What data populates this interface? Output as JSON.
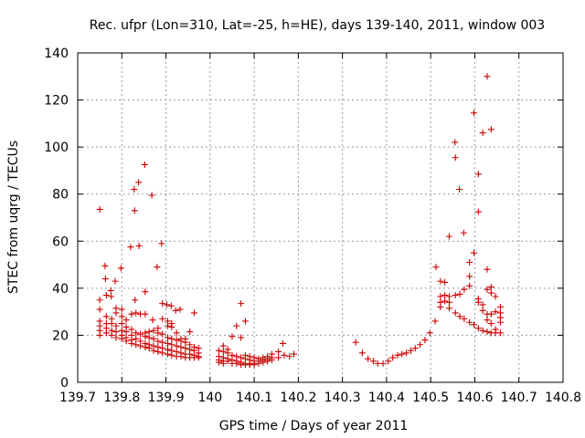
{
  "chart_data": {
    "type": "scatter",
    "title": "Rec. ufpr (Lon=310, Lat=-25, h=HE), days 139-140, 2011, window 003",
    "xlabel": "GPS time / Days of year 2011",
    "ylabel": "STEC from uqrg / TECUs",
    "xlim": [
      139.7,
      140.8
    ],
    "ylim": [
      0,
      140
    ],
    "xticks": [
      139.7,
      139.8,
      139.9,
      140.0,
      140.1,
      140.2,
      140.3,
      140.4,
      140.5,
      140.6,
      140.7,
      140.8
    ],
    "xtick_labels": [
      "139.7",
      "139.8",
      "139.9",
      "140",
      "140.1",
      "140.2",
      "140.3",
      "140.4",
      "140.5",
      "140.6",
      "140.7",
      "140.8"
    ],
    "yticks": [
      0,
      20,
      40,
      60,
      80,
      100,
      120,
      140
    ],
    "ytick_labels": [
      "0",
      "20",
      "40",
      "60",
      "80",
      "100",
      "120",
      "140"
    ],
    "grid": true,
    "marker": "+",
    "color": "#cc0000",
    "points": [
      [
        139.75,
        73.5
      ],
      [
        139.75,
        35
      ],
      [
        139.75,
        31
      ],
      [
        139.75,
        26
      ],
      [
        139.75,
        24
      ],
      [
        139.75,
        22
      ],
      [
        139.75,
        20
      ],
      [
        139.762,
        49.5
      ],
      [
        139.763,
        44
      ],
      [
        139.765,
        37
      ],
      [
        139.765,
        28
      ],
      [
        139.765,
        25
      ],
      [
        139.765,
        23
      ],
      [
        139.765,
        21
      ],
      [
        139.775,
        39
      ],
      [
        139.776,
        36.5
      ],
      [
        139.777,
        27
      ],
      [
        139.777,
        25
      ],
      [
        139.777,
        22
      ],
      [
        139.777,
        20
      ],
      [
        139.785,
        43
      ],
      [
        139.787,
        31.5
      ],
      [
        139.787,
        29.5
      ],
      [
        139.787,
        24
      ],
      [
        139.787,
        21.5
      ],
      [
        139.787,
        19
      ],
      [
        139.798,
        48.5
      ],
      [
        139.8,
        31
      ],
      [
        139.8,
        28
      ],
      [
        139.8,
        25
      ],
      [
        139.8,
        22
      ],
      [
        139.8,
        20
      ],
      [
        139.8,
        18.5
      ],
      [
        139.81,
        26.5
      ],
      [
        139.81,
        23.5
      ],
      [
        139.81,
        21.5
      ],
      [
        139.81,
        19
      ],
      [
        139.81,
        17.5
      ],
      [
        139.82,
        57.5
      ],
      [
        139.822,
        29
      ],
      [
        139.822,
        22.5
      ],
      [
        139.822,
        20
      ],
      [
        139.822,
        18
      ],
      [
        139.822,
        16.5
      ],
      [
        139.828,
        82
      ],
      [
        139.829,
        73
      ],
      [
        139.83,
        35
      ],
      [
        139.832,
        29.5
      ],
      [
        139.832,
        21
      ],
      [
        139.832,
        18.5
      ],
      [
        139.832,
        16
      ],
      [
        139.838,
        85
      ],
      [
        139.839,
        58
      ],
      [
        139.842,
        29
      ],
      [
        139.842,
        20.5
      ],
      [
        139.842,
        17.5
      ],
      [
        139.842,
        15.5
      ],
      [
        139.852,
        92.5
      ],
      [
        139.853,
        38.5
      ],
      [
        139.853,
        29
      ],
      [
        139.853,
        21
      ],
      [
        139.853,
        19.5
      ],
      [
        139.853,
        16.5
      ],
      [
        139.853,
        15
      ],
      [
        139.862,
        21.5
      ],
      [
        139.862,
        19
      ],
      [
        139.862,
        16
      ],
      [
        139.862,
        14.5
      ],
      [
        139.868,
        79.5
      ],
      [
        139.87,
        26.5
      ],
      [
        139.872,
        22
      ],
      [
        139.872,
        18.5
      ],
      [
        139.872,
        15.5
      ],
      [
        139.872,
        13.5
      ],
      [
        139.88,
        49
      ],
      [
        139.882,
        23
      ],
      [
        139.882,
        21
      ],
      [
        139.882,
        17.5
      ],
      [
        139.882,
        15
      ],
      [
        139.882,
        13
      ],
      [
        139.89,
        59
      ],
      [
        139.892,
        33.5
      ],
      [
        139.892,
        27
      ],
      [
        139.892,
        20.5
      ],
      [
        139.892,
        17
      ],
      [
        139.892,
        14.5
      ],
      [
        139.892,
        12.5
      ],
      [
        139.902,
        33
      ],
      [
        139.904,
        26
      ],
      [
        139.904,
        24
      ],
      [
        139.904,
        19
      ],
      [
        139.904,
        16.5
      ],
      [
        139.904,
        14
      ],
      [
        139.904,
        12
      ],
      [
        139.912,
        32.5
      ],
      [
        139.913,
        25
      ],
      [
        139.913,
        23.5
      ],
      [
        139.913,
        18.5
      ],
      [
        139.913,
        16
      ],
      [
        139.913,
        13.5
      ],
      [
        139.913,
        11.5
      ],
      [
        139.922,
        30.5
      ],
      [
        139.924,
        21
      ],
      [
        139.924,
        18
      ],
      [
        139.924,
        15.5
      ],
      [
        139.924,
        13
      ],
      [
        139.924,
        11
      ],
      [
        139.932,
        31
      ],
      [
        139.934,
        18.5
      ],
      [
        139.934,
        17.5
      ],
      [
        139.934,
        15
      ],
      [
        139.934,
        12.5
      ],
      [
        139.934,
        11
      ],
      [
        139.944,
        18.5
      ],
      [
        139.944,
        17
      ],
      [
        139.944,
        14.5
      ],
      [
        139.944,
        12
      ],
      [
        139.944,
        10.5
      ],
      [
        139.954,
        21.5
      ],
      [
        139.954,
        16
      ],
      [
        139.954,
        14
      ],
      [
        139.954,
        12
      ],
      [
        139.954,
        10.5
      ],
      [
        139.964,
        29.5
      ],
      [
        139.964,
        15
      ],
      [
        139.964,
        13.5
      ],
      [
        139.964,
        11.5
      ],
      [
        139.964,
        10.5
      ],
      [
        139.974,
        14.5
      ],
      [
        139.974,
        12.5
      ],
      [
        139.974,
        11
      ],
      [
        139.974,
        10.5
      ],
      [
        140.02,
        13.5
      ],
      [
        140.02,
        11
      ],
      [
        140.02,
        9.5
      ],
      [
        140.02,
        8.5
      ],
      [
        140.03,
        15.5
      ],
      [
        140.03,
        13
      ],
      [
        140.03,
        10.5
      ],
      [
        140.03,
        9
      ],
      [
        140.03,
        8
      ],
      [
        140.04,
        14
      ],
      [
        140.04,
        12.5
      ],
      [
        140.04,
        10
      ],
      [
        140.04,
        9
      ],
      [
        140.05,
        19.5
      ],
      [
        140.05,
        11.5
      ],
      [
        140.05,
        9.5
      ],
      [
        140.05,
        8
      ],
      [
        140.06,
        24
      ],
      [
        140.06,
        11
      ],
      [
        140.06,
        9
      ],
      [
        140.06,
        8
      ],
      [
        140.07,
        33.5
      ],
      [
        140.07,
        19
      ],
      [
        140.07,
        10.5
      ],
      [
        140.07,
        8.5
      ],
      [
        140.07,
        7.5
      ],
      [
        140.08,
        26
      ],
      [
        140.08,
        11.5
      ],
      [
        140.08,
        10
      ],
      [
        140.08,
        8
      ],
      [
        140.08,
        7.5
      ],
      [
        140.09,
        11
      ],
      [
        140.09,
        9.5
      ],
      [
        140.09,
        8
      ],
      [
        140.09,
        7.5
      ],
      [
        140.1,
        10.5
      ],
      [
        140.1,
        9
      ],
      [
        140.1,
        8
      ],
      [
        140.1,
        7.5
      ],
      [
        140.11,
        10
      ],
      [
        140.11,
        9
      ],
      [
        140.11,
        8
      ],
      [
        140.12,
        10.5
      ],
      [
        140.12,
        9.5
      ],
      [
        140.12,
        8.5
      ],
      [
        140.13,
        11
      ],
      [
        140.13,
        10
      ],
      [
        140.13,
        9
      ],
      [
        140.14,
        12
      ],
      [
        140.14,
        10.5
      ],
      [
        140.14,
        9.5
      ],
      [
        140.155,
        13
      ],
      [
        140.155,
        10.5
      ],
      [
        140.165,
        16.5
      ],
      [
        140.168,
        11.5
      ],
      [
        140.18,
        11
      ],
      [
        140.19,
        12
      ],
      [
        140.33,
        17
      ],
      [
        140.345,
        12.5
      ],
      [
        140.358,
        10
      ],
      [
        140.37,
        9
      ],
      [
        140.38,
        8
      ],
      [
        140.392,
        8
      ],
      [
        140.404,
        9
      ],
      [
        140.414,
        10.5
      ],
      [
        140.425,
        11.5
      ],
      [
        140.435,
        12
      ],
      [
        140.445,
        12.5
      ],
      [
        140.455,
        13.5
      ],
      [
        140.465,
        14.5
      ],
      [
        140.476,
        16
      ],
      [
        140.487,
        18
      ],
      [
        140.498,
        21
      ],
      [
        140.51,
        26
      ],
      [
        140.512,
        49
      ],
      [
        140.522,
        43
      ],
      [
        140.522,
        36.5
      ],
      [
        140.522,
        34
      ],
      [
        140.522,
        32
      ],
      [
        140.532,
        42.5
      ],
      [
        140.532,
        37
      ],
      [
        140.532,
        34.5
      ],
      [
        140.542,
        62
      ],
      [
        140.542,
        36.5
      ],
      [
        140.542,
        34
      ],
      [
        140.542,
        31.5
      ],
      [
        140.555,
        102
      ],
      [
        140.556,
        95.5
      ],
      [
        140.556,
        37
      ],
      [
        140.556,
        29.5
      ],
      [
        140.565,
        82
      ],
      [
        140.566,
        37.5
      ],
      [
        140.566,
        28
      ],
      [
        140.575,
        63.5
      ],
      [
        140.576,
        39.5
      ],
      [
        140.576,
        27
      ],
      [
        140.588,
        51
      ],
      [
        140.588,
        45
      ],
      [
        140.588,
        41
      ],
      [
        140.588,
        25.5
      ],
      [
        140.598,
        114.5
      ],
      [
        140.598,
        55
      ],
      [
        140.598,
        24.5
      ],
      [
        140.608,
        88.5
      ],
      [
        140.608,
        72.5
      ],
      [
        140.608,
        35.5
      ],
      [
        140.608,
        34
      ],
      [
        140.608,
        23
      ],
      [
        140.618,
        106
      ],
      [
        140.618,
        33
      ],
      [
        140.618,
        30.5
      ],
      [
        140.618,
        22
      ],
      [
        140.628,
        130
      ],
      [
        140.628,
        48
      ],
      [
        140.628,
        39.5
      ],
      [
        140.628,
        29
      ],
      [
        140.628,
        26.5
      ],
      [
        140.628,
        21.5
      ],
      [
        140.637,
        107.5
      ],
      [
        140.637,
        40.5
      ],
      [
        140.637,
        38
      ],
      [
        140.637,
        29
      ],
      [
        140.637,
        25
      ],
      [
        140.637,
        21
      ],
      [
        140.647,
        36.5
      ],
      [
        140.647,
        30
      ],
      [
        140.647,
        22.5
      ],
      [
        140.647,
        21
      ],
      [
        140.658,
        32
      ],
      [
        140.658,
        29.5
      ],
      [
        140.658,
        27.5
      ],
      [
        140.658,
        25.5
      ],
      [
        140.658,
        21
      ]
    ]
  }
}
